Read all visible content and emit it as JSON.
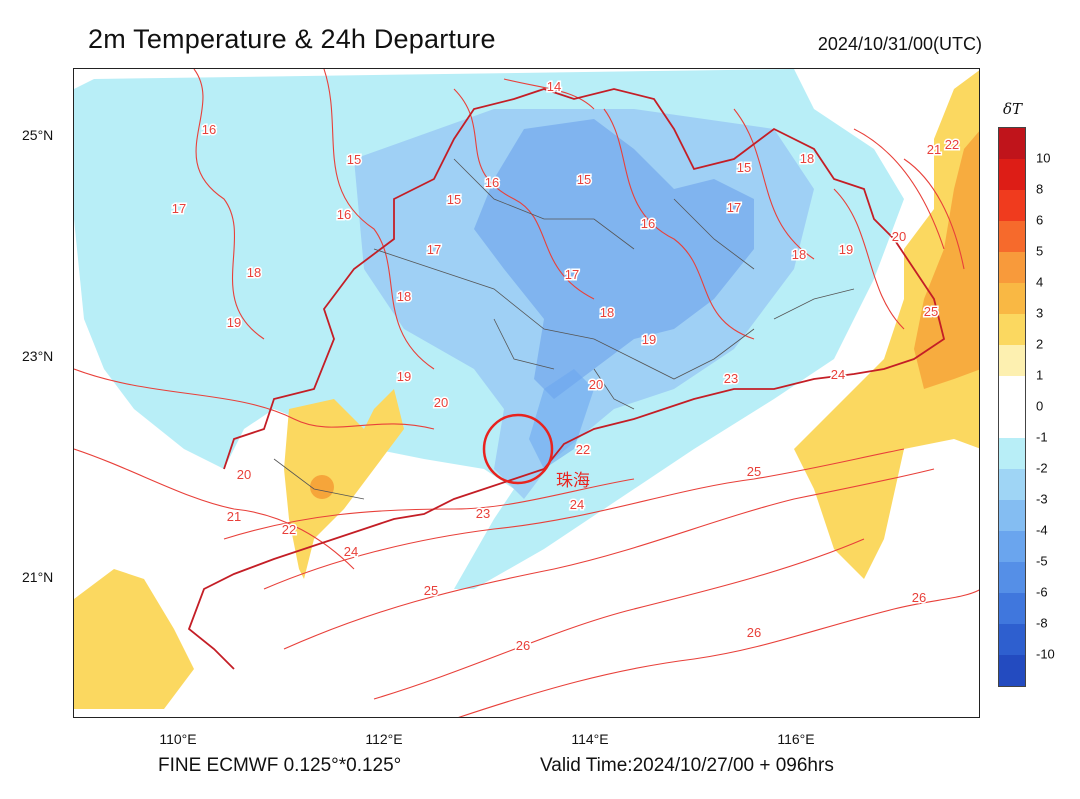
{
  "header": {
    "title": "2m Temperature & 24h Departure",
    "timestamp": "2024/10/31/00(UTC)"
  },
  "axes": {
    "lat_labels": [
      "25°N",
      "23°N",
      "21°N"
    ],
    "lon_labels": [
      "110°E",
      "112°E",
      "114°E",
      "116°E"
    ]
  },
  "footer": {
    "model": "FINE ECMWF 0.125°*0.125°",
    "valid_time": "Valid Time:2024/10/27/00 + 096hrs"
  },
  "legend": {
    "title": "δT",
    "ticks": [
      "10",
      "8",
      "6",
      "5",
      "4",
      "3",
      "2",
      "1",
      "0",
      "-1",
      "-2",
      "-3",
      "-4",
      "-5",
      "-6",
      "-8",
      "-10"
    ],
    "colors": [
      "#c0141b",
      "#dd1d16",
      "#f03b1e",
      "#f66a2c",
      "#f89a3b",
      "#f9b844",
      "#fbd860",
      "#fdf0b0",
      "#ffffff",
      "#ffffff",
      "#b8eef7",
      "#9fd5f5",
      "#84bdf2",
      "#6aa5ee",
      "#558fe7",
      "#4077dd",
      "#2e5fcf",
      "#234bc0"
    ]
  },
  "annotation": {
    "city": "珠海",
    "color": "#e8231f"
  },
  "contour_labels": [
    "14",
    "15",
    "16",
    "17",
    "18",
    "19",
    "20",
    "21",
    "22",
    "23",
    "24",
    "25",
    "26"
  ],
  "colors": {
    "contour": "#e8403a",
    "boundary": "#c41e26",
    "inner_boundary": "#555555",
    "cold": "#b8eef7",
    "colder": "#9fd0f5",
    "coldest": "#80b4ef",
    "warm": "#fbd860",
    "warmer": "#f6a53a",
    "warmest": "#f08a2c"
  }
}
